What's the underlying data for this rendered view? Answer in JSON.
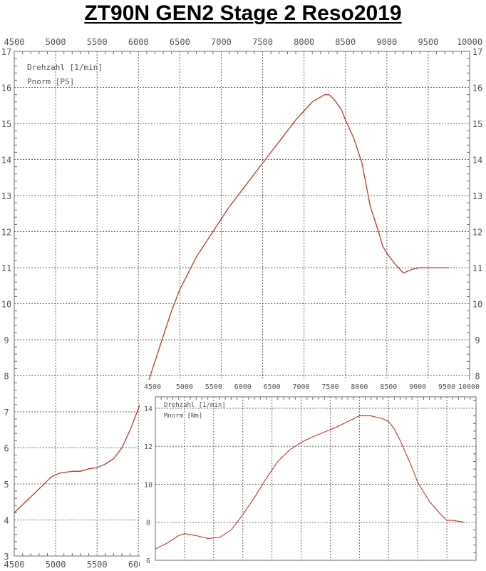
{
  "title": "ZT90N GEN2  Stage 2  Reso2019",
  "colors": {
    "curve": "#c0392b",
    "grid": "#6b6b6b",
    "frame": "#6b6b6b",
    "text": "#555555"
  },
  "chart_data": [
    {
      "type": "line",
      "legend": [
        "Drehzahl [1/min]",
        "Pnorm [PS]"
      ],
      "x_ticks": [
        "4500",
        "5000",
        "5500",
        "6000",
        "6500",
        "7000",
        "7500",
        "8000",
        "8500",
        "9000",
        "9500",
        "10000"
      ],
      "y_ticks_left": [
        "3",
        "4",
        "5",
        "6",
        "7",
        "8",
        "9",
        "10",
        "11",
        "12",
        "13",
        "14",
        "15",
        "16",
        "17"
      ],
      "y_ticks_right": [
        "8",
        "9",
        "10",
        "11",
        "12",
        "13",
        "14",
        "15",
        "16",
        "17"
      ],
      "xlim": [
        4500,
        10000
      ],
      "ylim": [
        3,
        17
      ],
      "grid": true,
      "series": [
        {
          "x": [
            4500,
            4750,
            4950,
            5050,
            5200,
            5300,
            5400,
            5500,
            5600,
            5700,
            5800,
            5900,
            6000,
            6100,
            6200,
            6300,
            6400,
            6500,
            6700,
            6900,
            7100,
            7300,
            7500,
            7700,
            7900,
            8100,
            8250,
            8300,
            8350,
            8450,
            8500,
            8600,
            8700,
            8750,
            8800,
            8900,
            8950,
            9000,
            9050,
            9100,
            9200,
            9300,
            9400,
            9500,
            9600,
            9750
          ],
          "y": [
            4.2,
            4.75,
            5.2,
            5.3,
            5.35,
            5.35,
            5.42,
            5.45,
            5.55,
            5.7,
            6.0,
            6.5,
            7.1,
            7.7,
            8.4,
            9.1,
            9.8,
            10.4,
            11.3,
            12.0,
            12.7,
            13.3,
            13.9,
            14.5,
            15.1,
            15.6,
            15.8,
            15.8,
            15.7,
            15.4,
            15.1,
            14.6,
            13.9,
            13.3,
            12.7,
            12.0,
            11.6,
            11.4,
            11.25,
            11.1,
            10.85,
            10.95,
            11.0,
            11.0,
            11.0,
            11.0
          ]
        }
      ]
    },
    {
      "type": "line",
      "legend": [
        "Drehzahl [1/min]",
        "Mnorm [Nm]"
      ],
      "x_ticks": [
        "4500",
        "5000",
        "5500",
        "6000",
        "6500",
        "7000",
        "7500",
        "8000",
        "8500",
        "9000",
        "9500",
        "10000"
      ],
      "y_ticks_left": [
        "6",
        "8",
        "10",
        "12",
        "14"
      ],
      "xlim": [
        4500,
        10000
      ],
      "ylim": [
        6,
        14.6
      ],
      "grid": true,
      "series": [
        {
          "x": [
            4500,
            4700,
            4900,
            5000,
            5200,
            5400,
            5600,
            5800,
            6000,
            6200,
            6400,
            6600,
            6800,
            7000,
            7200,
            7400,
            7600,
            7800,
            8000,
            8200,
            8400,
            8500,
            8600,
            8700,
            8800,
            8900,
            9000,
            9200,
            9400,
            9500,
            9600,
            9800
          ],
          "y": [
            6.6,
            6.9,
            7.3,
            7.4,
            7.3,
            7.15,
            7.2,
            7.6,
            8.4,
            9.3,
            10.3,
            11.2,
            11.8,
            12.2,
            12.5,
            12.75,
            13.0,
            13.3,
            13.6,
            13.6,
            13.45,
            13.3,
            12.9,
            12.3,
            11.6,
            10.9,
            10.1,
            9.1,
            8.4,
            8.1,
            8.1,
            8.0
          ]
        }
      ]
    }
  ]
}
